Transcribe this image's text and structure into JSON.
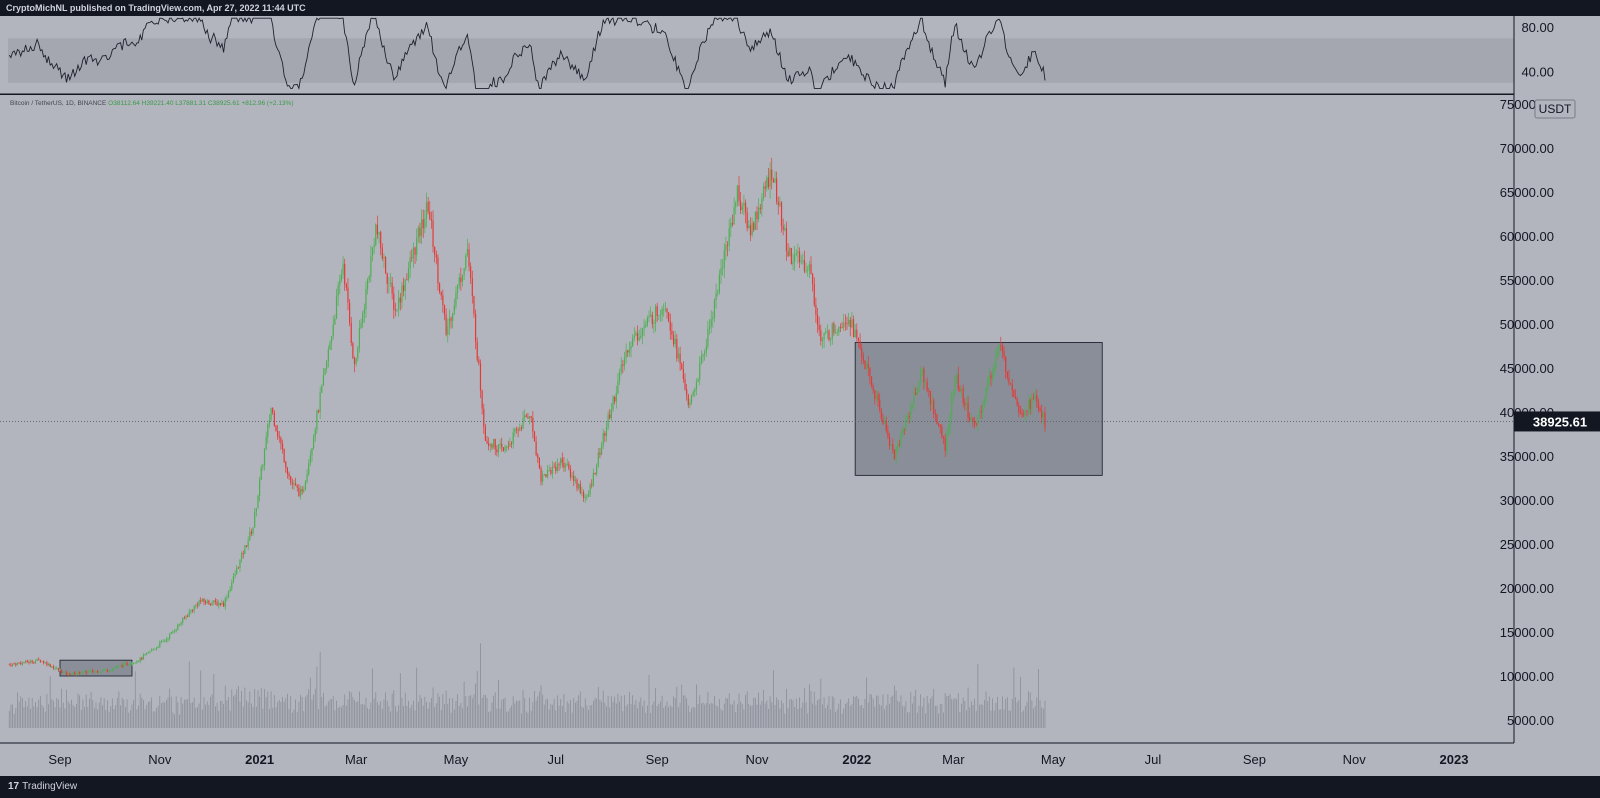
{
  "header": {
    "published_text": "CryptoMichNL published on TradingView.com, Apr 27, 2022 11:44 UTC"
  },
  "legend": {
    "symbol": "Bitcoin / TetherUS, 1D, BINANCE",
    "open": "O38112.64",
    "high": "H39221.40",
    "low": "L37881.31",
    "close": "C38925.61",
    "change": "+812.96 (+2.13%)"
  },
  "price_scale": {
    "currency_badge": "USDT",
    "current_price_label": "38925.61",
    "current_price": 38925.61
  },
  "rsi_scale": {
    "labels": [
      "80.00",
      "40.00"
    ]
  },
  "footer": {
    "brand": "TradingView",
    "brand_mark": "17"
  },
  "colors": {
    "background_panel": "#b2b5be",
    "up_candle": "#4caf50",
    "down_candle": "#e53935",
    "box_fill": "#6a6e78",
    "axis_text": "#131722",
    "chrome": "#131722"
  },
  "chart_data": [
    {
      "type": "line",
      "panel": "rsi",
      "ylim": [
        20,
        90
      ],
      "y_ticks": [
        80,
        40
      ],
      "note_band": [
        30,
        70
      ]
    },
    {
      "type": "candlestick",
      "panel": "price",
      "x_tick_labels": [
        "Sep",
        "Nov",
        "2021",
        "Mar",
        "May",
        "Jul",
        "Sep",
        "Nov",
        "2022",
        "Mar",
        "May",
        "Jul",
        "Sep",
        "Nov",
        "2023"
      ],
      "x_tick_dates": [
        "2020-09-01",
        "2020-11-01",
        "2021-01-01",
        "2021-03-01",
        "2021-05-01",
        "2021-07-01",
        "2021-09-01",
        "2021-11-01",
        "2022-01-01",
        "2022-03-01",
        "2022-05-01",
        "2022-07-01",
        "2022-09-01",
        "2022-11-01",
        "2023-01-01"
      ],
      "y_tick_labels": [
        "5000.00",
        "10000.00",
        "15000.00",
        "20000.00",
        "25000.00",
        "30000.00",
        "35000.00",
        "40000.00",
        "45000.00",
        "50000.00",
        "55000.00",
        "60000.00",
        "65000.00",
        "70000.00",
        "75000.00"
      ],
      "ylim": [
        4000,
        76000
      ],
      "price_path": [
        [
          "2020-08-01",
          11300
        ],
        [
          "2020-08-20",
          11800
        ],
        [
          "2020-09-05",
          10200
        ],
        [
          "2020-10-01",
          10700
        ],
        [
          "2020-10-20",
          11900
        ],
        [
          "2020-11-05",
          14200
        ],
        [
          "2020-11-25",
          18500
        ],
        [
          "2020-12-10",
          18200
        ],
        [
          "2020-12-28",
          27000
        ],
        [
          "2021-01-08",
          40500
        ],
        [
          "2021-01-20",
          32000
        ],
        [
          "2021-01-27",
          30500
        ],
        [
          "2021-02-10",
          44500
        ],
        [
          "2021-02-21",
          57000
        ],
        [
          "2021-02-28",
          45000
        ],
        [
          "2021-03-13",
          61000
        ],
        [
          "2021-03-25",
          51500
        ],
        [
          "2021-04-14",
          63500
        ],
        [
          "2021-04-25",
          49000
        ],
        [
          "2021-05-08",
          58500
        ],
        [
          "2021-05-19",
          37000
        ],
        [
          "2021-05-30",
          35500
        ],
        [
          "2021-06-15",
          40000
        ],
        [
          "2021-06-22",
          32500
        ],
        [
          "2021-07-05",
          34500
        ],
        [
          "2021-07-20",
          30000
        ],
        [
          "2021-08-14",
          47500
        ],
        [
          "2021-09-06",
          52500
        ],
        [
          "2021-09-21",
          40500
        ],
        [
          "2021-10-01",
          48000
        ],
        [
          "2021-10-20",
          65000
        ],
        [
          "2021-10-28",
          60500
        ],
        [
          "2021-11-10",
          67500
        ],
        [
          "2021-11-20",
          58000
        ],
        [
          "2021-12-03",
          56500
        ],
        [
          "2021-12-10",
          48000
        ],
        [
          "2021-12-27",
          51000
        ],
        [
          "2022-01-05",
          46000
        ],
        [
          "2022-01-24",
          35000
        ],
        [
          "2022-02-10",
          44500
        ],
        [
          "2022-02-24",
          36000
        ],
        [
          "2022-03-02",
          44000
        ],
        [
          "2022-03-14",
          38000
        ],
        [
          "2022-03-29",
          47500
        ],
        [
          "2022-04-11",
          40000
        ],
        [
          "2022-04-20",
          41500
        ],
        [
          "2022-04-26",
          38925
        ]
      ],
      "volume_max": 22000,
      "boxes": [
        {
          "x0": "2020-09-01",
          "x1": "2020-10-15",
          "y0": 10000,
          "y1": 11800
        },
        {
          "x0": "2021-12-31",
          "x1": "2022-05-31",
          "y0": 32800,
          "y1": 47900
        }
      ],
      "current_price_line": 38925.61
    }
  ]
}
